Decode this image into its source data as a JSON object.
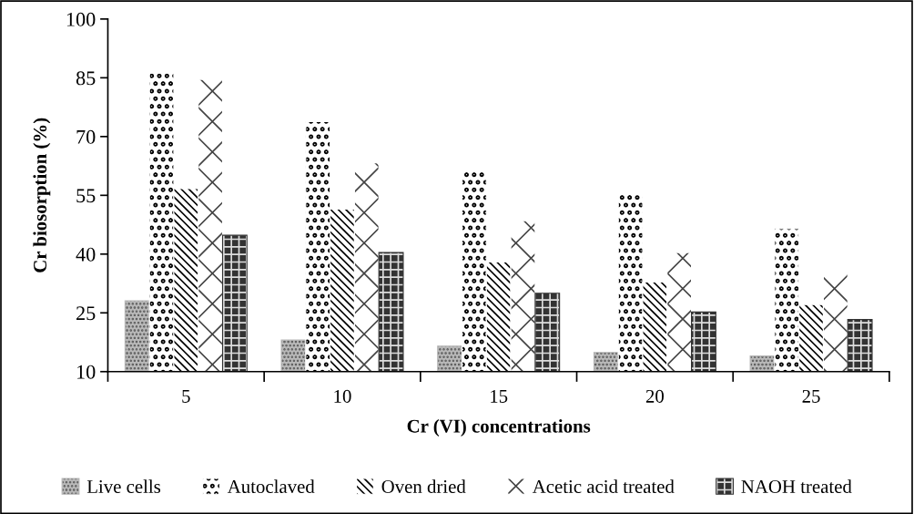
{
  "chart_data": {
    "type": "bar",
    "xlabel": "Cr (VI) concentrations",
    "ylabel": "Cr biosorption (%)",
    "categories": [
      "5",
      "10",
      "15",
      "20",
      "25"
    ],
    "series": [
      {
        "name": "Live cells",
        "color": "#b8b8b8",
        "values": [
          28.1,
          18.1,
          16.5,
          14.9,
          14.0
        ]
      },
      {
        "name": "Autoclaved",
        "color": "#ffffff",
        "values": [
          86.2,
          73.8,
          61.1,
          55.7,
          46.5
        ]
      },
      {
        "name": "Oven dried",
        "color": "#ffffff",
        "values": [
          56.7,
          51.5,
          38.0,
          32.9,
          27.1
        ]
      },
      {
        "name": "Acetic acid treated",
        "color": "#ffffff",
        "values": [
          84.6,
          63.3,
          48.5,
          40.4,
          35.1
        ]
      },
      {
        "name": "NAOH treated",
        "color": "#333333",
        "values": [
          44.8,
          40.4,
          30.0,
          25.2,
          23.3
        ]
      }
    ],
    "ylim": [
      10,
      100
    ],
    "yticks": [
      10,
      25,
      40,
      55,
      70,
      85,
      100
    ],
    "grid": false,
    "legend": "bottom"
  }
}
